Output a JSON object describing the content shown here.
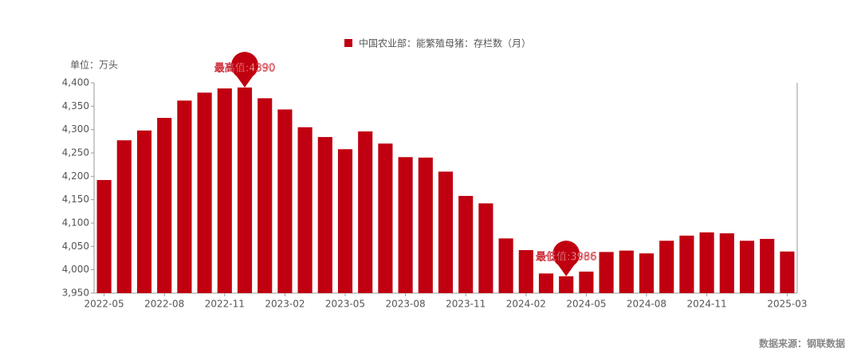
{
  "chart_data": {
    "type": "bar",
    "legend": "中国农业部：能繁殖母猪：存栏数（月）",
    "unit": "单位：万头",
    "source": "数据来源：钢联数据",
    "color": "#c00010",
    "categories": [
      "2022-05",
      null,
      null,
      "2022-08",
      null,
      null,
      "2022-11",
      null,
      null,
      "2023-02",
      null,
      null,
      "2023-05",
      null,
      null,
      "2023-08",
      null,
      null,
      "2023-11",
      null,
      null,
      "2024-02",
      null,
      null,
      "2024-05",
      null,
      null,
      "2024-08",
      null,
      null,
      "2024-11",
      null,
      null,
      null,
      "2025-03"
    ],
    "values": [
      4192,
      4277,
      4298,
      4325,
      4362,
      4379,
      4388,
      4390,
      4367,
      4343,
      4305,
      4284,
      4258,
      4296,
      4270,
      4241,
      4240,
      4210,
      4158,
      4142,
      4067,
      4042,
      3992,
      3986,
      3996,
      4038,
      4041,
      4035,
      4062,
      4073,
      4080,
      4078,
      4062,
      4066,
      4039
    ],
    "annotations": {
      "max": "最高值:4390",
      "min": "最低值:3986"
    },
    "ylim": [
      3950,
      4400
    ],
    "yticks": [
      {
        "value": 3950,
        "label": "3,950"
      },
      {
        "value": 4000,
        "label": "4,000"
      },
      {
        "value": 4050,
        "label": "4,050"
      },
      {
        "value": 4100,
        "label": "4,100"
      },
      {
        "value": 4150,
        "label": "4,150"
      },
      {
        "value": 4200,
        "label": "4,200"
      },
      {
        "value": 4250,
        "label": "4,250"
      },
      {
        "value": 4300,
        "label": "4,300"
      },
      {
        "value": 4350,
        "label": "4,350"
      },
      {
        "value": 4400,
        "label": "4,400"
      }
    ]
  }
}
